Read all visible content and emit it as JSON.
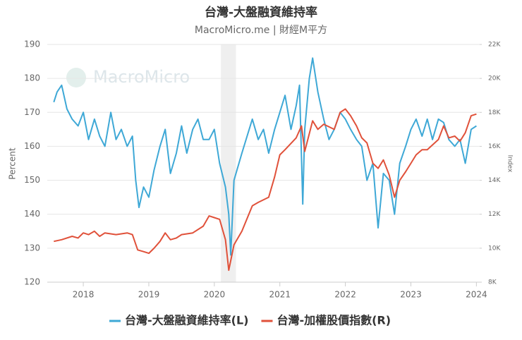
{
  "chart_data": {
    "type": "line",
    "title": "台灣-大盤融資維持率",
    "subtitle": "MacroMicro.me | 財經M平方",
    "watermark": "MacroMicro",
    "y_label": "Percent",
    "y2_label": "Index",
    "xlim": [
      2017.45,
      2024.05
    ],
    "xticks": [
      2018,
      2019,
      2020,
      2021,
      2022,
      2023,
      2024
    ],
    "ylim": [
      120,
      190
    ],
    "yticks": [
      120,
      130,
      140,
      150,
      160,
      170,
      180,
      190
    ],
    "y2lim": [
      8000,
      22000
    ],
    "y2ticks": [
      {
        "value": 8000,
        "label": "8K"
      },
      {
        "value": 10000,
        "label": "10K"
      },
      {
        "value": 12000,
        "label": "12K"
      },
      {
        "value": 14000,
        "label": "14K"
      },
      {
        "value": 16000,
        "label": "16K"
      },
      {
        "value": 18000,
        "label": "18K"
      },
      {
        "value": 20000,
        "label": "20K"
      },
      {
        "value": 22000,
        "label": "22K"
      }
    ],
    "grid": true,
    "highlight_xrange": [
      2020.1,
      2020.33
    ],
    "series": [
      {
        "name": "台灣-大盤融資維持率(L)",
        "color": "#3ea8d6",
        "axis": "y",
        "x": [
          2017.55,
          2017.6,
          2017.67,
          2017.75,
          2017.83,
          2017.92,
          2018.0,
          2018.08,
          2018.17,
          2018.25,
          2018.33,
          2018.42,
          2018.5,
          2018.58,
          2018.67,
          2018.75,
          2018.8,
          2018.85,
          2018.92,
          2019.0,
          2019.08,
          2019.17,
          2019.25,
          2019.33,
          2019.42,
          2019.5,
          2019.58,
          2019.67,
          2019.75,
          2019.83,
          2019.92,
          2020.0,
          2020.08,
          2020.17,
          2020.22,
          2020.25,
          2020.3,
          2020.42,
          2020.5,
          2020.58,
          2020.67,
          2020.75,
          2020.83,
          2020.92,
          2021.0,
          2021.08,
          2021.17,
          2021.25,
          2021.3,
          2021.35,
          2021.38,
          2021.45,
          2021.5,
          2021.58,
          2021.67,
          2021.75,
          2021.83,
          2021.92,
          2022.0,
          2022.08,
          2022.17,
          2022.25,
          2022.33,
          2022.42,
          2022.5,
          2022.58,
          2022.67,
          2022.75,
          2022.83,
          2022.92,
          2023.0,
          2023.08,
          2023.17,
          2023.25,
          2023.33,
          2023.42,
          2023.5,
          2023.58,
          2023.67,
          2023.75,
          2023.83,
          2023.92,
          2024.0
        ],
        "values": [
          173,
          176,
          178,
          171,
          168,
          166,
          170,
          162,
          168,
          163,
          160,
          170,
          162,
          165,
          160,
          163,
          150,
          142,
          148,
          145,
          153,
          160,
          165,
          152,
          158,
          166,
          158,
          165,
          168,
          162,
          162,
          165,
          155,
          148,
          140,
          128,
          150,
          158,
          163,
          168,
          162,
          165,
          158,
          165,
          170,
          175,
          165,
          172,
          178,
          143,
          165,
          180,
          186,
          176,
          168,
          162,
          165,
          170,
          168,
          165,
          162,
          160,
          150,
          155,
          136,
          152,
          150,
          140,
          155,
          160,
          165,
          168,
          163,
          168,
          162,
          168,
          167,
          162,
          160,
          162,
          155,
          165,
          166
        ]
      },
      {
        "name": "台灣-加權股價指數(R)",
        "color": "#e0513a",
        "axis": "y2",
        "x": [
          2017.55,
          2017.67,
          2017.83,
          2017.92,
          2018.0,
          2018.08,
          2018.17,
          2018.25,
          2018.33,
          2018.5,
          2018.67,
          2018.75,
          2018.83,
          2018.92,
          2019.0,
          2019.08,
          2019.17,
          2019.25,
          2019.33,
          2019.42,
          2019.5,
          2019.67,
          2019.83,
          2019.92,
          2020.0,
          2020.08,
          2020.17,
          2020.22,
          2020.3,
          2020.42,
          2020.58,
          2020.67,
          2020.83,
          2020.92,
          2021.0,
          2021.08,
          2021.25,
          2021.33,
          2021.38,
          2021.5,
          2021.58,
          2021.67,
          2021.83,
          2021.92,
          2022.0,
          2022.08,
          2022.17,
          2022.25,
          2022.33,
          2022.42,
          2022.5,
          2022.58,
          2022.67,
          2022.75,
          2022.83,
          2022.92,
          2023.0,
          2023.08,
          2023.17,
          2023.25,
          2023.42,
          2023.5,
          2023.58,
          2023.67,
          2023.75,
          2023.83,
          2023.92,
          2024.0
        ],
        "values": [
          10400,
          10500,
          10700,
          10600,
          10900,
          10800,
          11000,
          10700,
          10900,
          10800,
          10900,
          10800,
          9900,
          9800,
          9700,
          10000,
          10400,
          10900,
          10500,
          10600,
          10800,
          10900,
          11300,
          11900,
          11800,
          11700,
          10500,
          8700,
          10200,
          11000,
          12500,
          12700,
          13000,
          14200,
          15500,
          15800,
          16500,
          17200,
          15700,
          17500,
          17000,
          17300,
          17000,
          18000,
          18200,
          17800,
          17200,
          16500,
          16200,
          15000,
          14700,
          15200,
          14300,
          13000,
          14000,
          14500,
          15000,
          15500,
          15800,
          15800,
          16400,
          17200,
          16500,
          16600,
          16300,
          16800,
          17800,
          17900
        ]
      }
    ]
  }
}
